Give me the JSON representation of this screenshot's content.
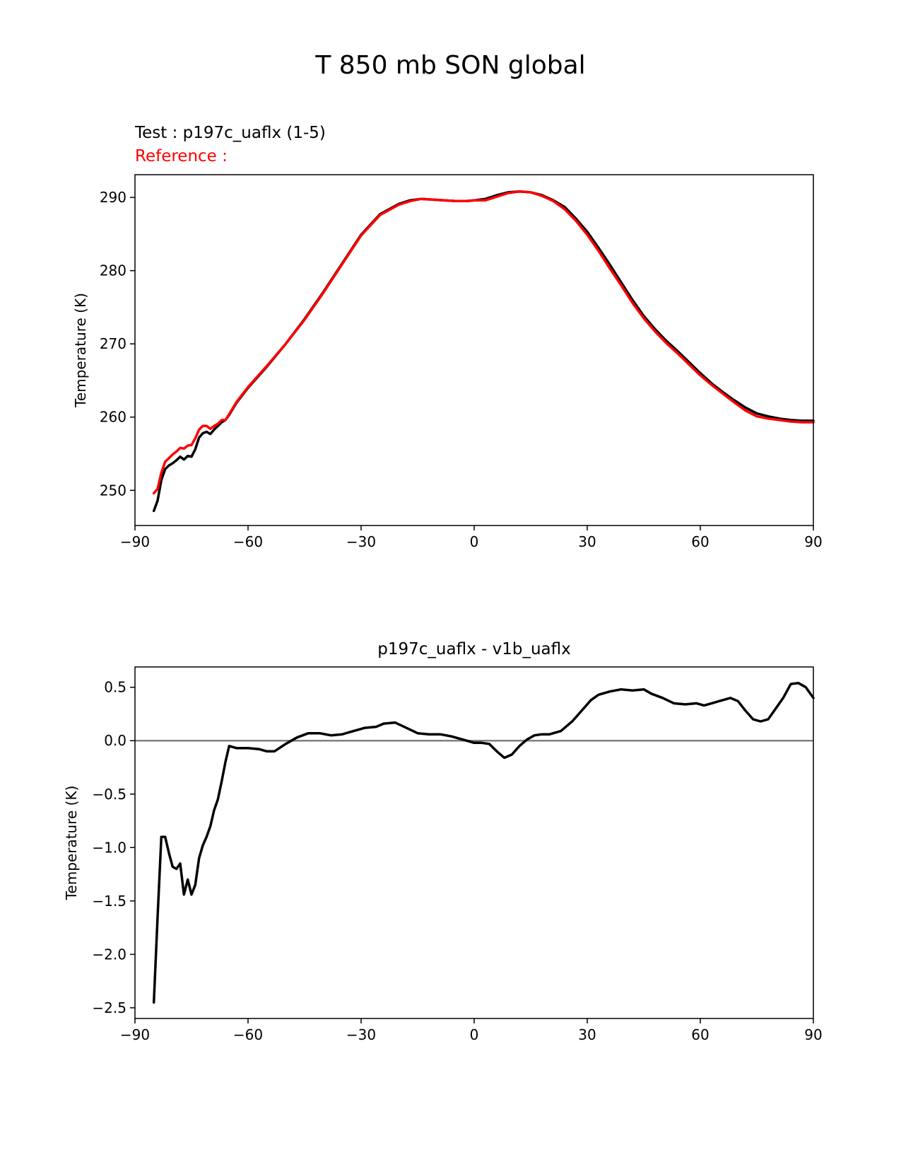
{
  "figure": {
    "title": "T 850 mb SON global"
  },
  "chart_data": [
    {
      "type": "line",
      "test_label": "Test : p197c_uaflx (1-5)",
      "reference_label": "Reference :",
      "xlabel": "",
      "ylabel": "Temperature (K)",
      "xlim": [
        -90,
        90
      ],
      "ylim": [
        245.2,
        293.1
      ],
      "xticks": [
        -90,
        -60,
        -30,
        0,
        30,
        60,
        90
      ],
      "xtick_labels": [
        "−90",
        "−60",
        "−30",
        "0",
        "30",
        "60",
        "90"
      ],
      "yticks": [
        250,
        260,
        270,
        280,
        290
      ],
      "ytick_labels": [
        "250",
        "260",
        "270",
        "280",
        "290"
      ],
      "grid": false,
      "series": [
        {
          "role": "test",
          "color": "#000000",
          "x": [
            -85,
            -84,
            -83,
            -82,
            -81,
            -80,
            -79,
            -78,
            -77,
            -76,
            -75,
            -74,
            -73,
            -72,
            -71,
            -70,
            -69,
            -68,
            -67,
            -66,
            -65,
            -63,
            -60,
            -55,
            -50,
            -45,
            -40,
            -35,
            -30,
            -25,
            -20,
            -17,
            -14,
            -11,
            -8,
            -5,
            -2,
            0,
            3,
            6,
            9,
            12,
            15,
            18,
            21,
            24,
            27,
            30,
            33,
            36,
            39,
            42,
            45,
            48,
            51,
            54,
            57,
            60,
            63,
            66,
            69,
            72,
            75,
            78,
            81,
            84,
            87,
            90
          ],
          "y": [
            247.2,
            248.6,
            251.4,
            252.9,
            253.4,
            253.7,
            254.1,
            254.6,
            254.2,
            254.7,
            254.6,
            255.6,
            257.2,
            257.8,
            258.0,
            257.7,
            258.3,
            258.8,
            259.3,
            259.6,
            260.3,
            262.0,
            264.0,
            266.9,
            270.0,
            273.4,
            277.1,
            281.0,
            284.9,
            287.7,
            289.1,
            289.6,
            289.8,
            289.7,
            289.6,
            289.5,
            289.5,
            289.6,
            289.8,
            290.3,
            290.7,
            290.8,
            290.7,
            290.3,
            289.6,
            288.7,
            287.1,
            285.3,
            283.1,
            280.8,
            278.4,
            276.0,
            273.8,
            272.0,
            270.4,
            269.0,
            267.5,
            266.0,
            264.6,
            263.4,
            262.3,
            261.3,
            260.5,
            260.1,
            259.8,
            259.6,
            259.5,
            259.5
          ]
        },
        {
          "role": "reference",
          "color": "#ff0000",
          "x": [
            -85,
            -84,
            -83,
            -82,
            -81,
            -80,
            -79,
            -78,
            -77,
            -76,
            -75,
            -74,
            -73,
            -72,
            -71,
            -70,
            -69,
            -68,
            -67,
            -66,
            -65,
            -63,
            -60,
            -55,
            -50,
            -45,
            -40,
            -35,
            -30,
            -25,
            -20,
            -17,
            -14,
            -11,
            -8,
            -5,
            -2,
            0,
            3,
            6,
            9,
            12,
            15,
            18,
            21,
            24,
            27,
            30,
            33,
            36,
            39,
            42,
            45,
            48,
            51,
            54,
            57,
            60,
            63,
            66,
            69,
            72,
            75,
            78,
            81,
            84,
            87,
            90
          ],
          "y": [
            249.6,
            250.2,
            252.4,
            253.9,
            254.4,
            254.9,
            255.3,
            255.8,
            255.7,
            256.1,
            256.2,
            257.1,
            258.3,
            258.8,
            258.8,
            258.4,
            258.8,
            259.1,
            259.6,
            259.6,
            260.4,
            262.1,
            264.1,
            267.0,
            270.0,
            273.3,
            277.0,
            280.9,
            284.8,
            287.6,
            289.0,
            289.5,
            289.8,
            289.7,
            289.6,
            289.5,
            289.5,
            289.6,
            289.6,
            290.1,
            290.6,
            290.8,
            290.7,
            290.2,
            289.5,
            288.4,
            286.8,
            284.9,
            282.7,
            280.3,
            278.0,
            275.6,
            273.5,
            271.7,
            270.1,
            268.7,
            267.2,
            265.7,
            264.4,
            263.2,
            262.0,
            260.9,
            260.1,
            259.8,
            259.6,
            259.4,
            259.3,
            259.3
          ]
        }
      ]
    },
    {
      "type": "line",
      "title": "p197c_uaflx - v1b_uaflx",
      "xlabel": "",
      "ylabel": "Temperature (K)",
      "xlim": [
        -90,
        90
      ],
      "ylim": [
        -2.6,
        0.69
      ],
      "xticks": [
        -90,
        -60,
        -30,
        0,
        30,
        60,
        90
      ],
      "xtick_labels": [
        "−90",
        "−60",
        "−30",
        "0",
        "30",
        "60",
        "90"
      ],
      "yticks": [
        0.5,
        0.0,
        -0.5,
        -1.0,
        -1.5,
        -2.0,
        -2.5
      ],
      "ytick_labels": [
        "0.5",
        "0.0",
        "−0.5",
        "−1.0",
        "−1.5",
        "−2.0",
        "−2.5"
      ],
      "grid": false,
      "zero_line": true,
      "series": [
        {
          "role": "difference",
          "color": "#000000",
          "x": [
            -85,
            -84,
            -83,
            -82,
            -81,
            -80,
            -79,
            -78,
            -77,
            -76,
            -75,
            -74,
            -73,
            -72,
            -71,
            -70,
            -69,
            -68,
            -67,
            -66,
            -65,
            -63,
            -60,
            -57,
            -55,
            -53,
            -50,
            -47,
            -44,
            -41,
            -38,
            -35,
            -32,
            -29,
            -26,
            -24,
            -21,
            -18,
            -15,
            -12,
            -9,
            -6,
            -3,
            0,
            2,
            4,
            6,
            8,
            10,
            12,
            14,
            16,
            18,
            20,
            23,
            26,
            29,
            31,
            33,
            36,
            39,
            42,
            45,
            47,
            50,
            53,
            56,
            59,
            61,
            63,
            66,
            68,
            70,
            72,
            74,
            76,
            78,
            80,
            82,
            84,
            86,
            88,
            90
          ],
          "y": [
            -2.45,
            -1.65,
            -0.9,
            -0.9,
            -1.05,
            -1.18,
            -1.2,
            -1.15,
            -1.44,
            -1.3,
            -1.44,
            -1.35,
            -1.1,
            -0.98,
            -0.9,
            -0.8,
            -0.65,
            -0.55,
            -0.38,
            -0.2,
            -0.05,
            -0.07,
            -0.07,
            -0.08,
            -0.1,
            -0.1,
            -0.03,
            0.03,
            0.07,
            0.07,
            0.05,
            0.06,
            0.09,
            0.12,
            0.13,
            0.16,
            0.17,
            0.12,
            0.07,
            0.06,
            0.06,
            0.04,
            0.01,
            -0.02,
            -0.02,
            -0.03,
            -0.1,
            -0.16,
            -0.13,
            -0.05,
            0.01,
            0.05,
            0.06,
            0.06,
            0.09,
            0.18,
            0.3,
            0.38,
            0.43,
            0.46,
            0.48,
            0.47,
            0.48,
            0.44,
            0.4,
            0.35,
            0.34,
            0.35,
            0.33,
            0.35,
            0.38,
            0.4,
            0.37,
            0.28,
            0.2,
            0.18,
            0.2,
            0.3,
            0.4,
            0.53,
            0.54,
            0.5,
            0.4
          ]
        }
      ],
      "hline": {
        "y": 0.0,
        "color": "#808080"
      }
    }
  ]
}
